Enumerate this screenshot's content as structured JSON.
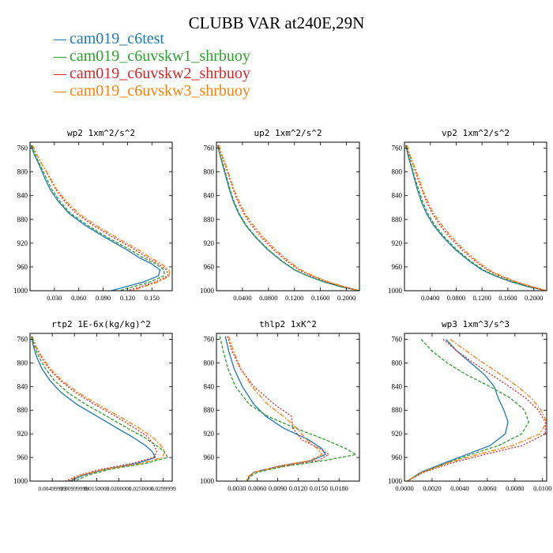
{
  "title": "CLUBB VAR at240E,29N",
  "legend": [
    {
      "label": "cam019_c6test",
      "color": "#1f77b4",
      "dash": ""
    },
    {
      "label": "cam019_c6uvskw1_shrbuoy",
      "color": "#2ca02c",
      "dash": "4,2"
    },
    {
      "label": "cam019_c6uvskw2_shrbuoy",
      "color": "#d62728",
      "dash": "2,2"
    },
    {
      "label": "cam019_c6uvskw3_shrbuoy",
      "color": "#ff7f0e",
      "dash": "6,2,2,2"
    }
  ],
  "chart_data": [
    {
      "type": "line",
      "title": "wp2  1xm^2/s^2",
      "ylim": [
        1000,
        750
      ],
      "yticks": [
        760,
        800,
        840,
        880,
        920,
        960,
        1000
      ],
      "xlim": [
        0.0,
        0.175
      ],
      "xticks": [
        0.03,
        0.06,
        0.09,
        0.12,
        0.15
      ],
      "xticklabels": [
        "0.030",
        "0.060",
        "0.090",
        "0.120",
        "0.150"
      ],
      "y": [
        755,
        770,
        790,
        810,
        830,
        850,
        870,
        890,
        910,
        930,
        945,
        955,
        965,
        975,
        985,
        1000
      ],
      "series": [
        {
          "name": "cam019_c6test",
          "values": [
            0.001,
            0.005,
            0.012,
            0.018,
            0.025,
            0.035,
            0.048,
            0.068,
            0.092,
            0.118,
            0.135,
            0.15,
            0.16,
            0.158,
            0.14,
            0.1
          ]
        },
        {
          "name": "cam019_c6uvskw1_shrbuoy",
          "values": [
            0.002,
            0.006,
            0.013,
            0.02,
            0.027,
            0.037,
            0.05,
            0.071,
            0.095,
            0.122,
            0.14,
            0.155,
            0.165,
            0.165,
            0.148,
            0.11
          ]
        },
        {
          "name": "cam019_c6uvskw2_shrbuoy",
          "values": [
            0.003,
            0.008,
            0.016,
            0.024,
            0.032,
            0.043,
            0.057,
            0.078,
            0.102,
            0.128,
            0.145,
            0.158,
            0.168,
            0.17,
            0.155,
            0.12
          ]
        },
        {
          "name": "cam019_c6uvskw3_shrbuoy",
          "values": [
            0.003,
            0.008,
            0.016,
            0.025,
            0.033,
            0.045,
            0.06,
            0.081,
            0.106,
            0.132,
            0.149,
            0.162,
            0.171,
            0.172,
            0.158,
            0.125
          ]
        }
      ]
    },
    {
      "type": "line",
      "title": "up2  1xm^2/s^2",
      "ylim": [
        1000,
        750
      ],
      "yticks": [
        760,
        800,
        840,
        880,
        920,
        960,
        1000
      ],
      "xlim": [
        0.0,
        0.22
      ],
      "xticks": [
        0.04,
        0.08,
        0.12,
        0.16,
        0.2
      ],
      "xticklabels": [
        "0.0400",
        "0.0800",
        "0.1200",
        "0.1600",
        "0.2000"
      ],
      "y": [
        755,
        770,
        790,
        810,
        830,
        850,
        870,
        890,
        910,
        930,
        950,
        965,
        975,
        985,
        993,
        1000
      ],
      "series": [
        {
          "name": "cam019_c6test",
          "values": [
            0.002,
            0.005,
            0.01,
            0.015,
            0.02,
            0.026,
            0.034,
            0.045,
            0.06,
            0.078,
            0.1,
            0.12,
            0.14,
            0.165,
            0.19,
            0.22
          ]
        },
        {
          "name": "cam019_c6uvskw1_shrbuoy",
          "values": [
            0.002,
            0.005,
            0.011,
            0.016,
            0.021,
            0.027,
            0.035,
            0.046,
            0.061,
            0.079,
            0.101,
            0.121,
            0.141,
            0.166,
            0.191,
            0.22
          ]
        },
        {
          "name": "cam019_c6uvskw2_shrbuoy",
          "values": [
            0.003,
            0.007,
            0.014,
            0.02,
            0.026,
            0.033,
            0.042,
            0.054,
            0.069,
            0.087,
            0.108,
            0.127,
            0.146,
            0.17,
            0.194,
            0.22
          ]
        },
        {
          "name": "cam019_c6uvskw3_shrbuoy",
          "values": [
            0.004,
            0.008,
            0.015,
            0.021,
            0.027,
            0.035,
            0.044,
            0.057,
            0.072,
            0.09,
            0.111,
            0.13,
            0.149,
            0.172,
            0.196,
            0.22
          ]
        }
      ]
    },
    {
      "type": "line",
      "title": "vp2  1xm^2/s^2",
      "ylim": [
        1000,
        750
      ],
      "yticks": [
        760,
        800,
        840,
        880,
        920,
        960,
        1000
      ],
      "xlim": [
        0.0,
        0.22
      ],
      "xticks": [
        0.04,
        0.08,
        0.12,
        0.16,
        0.2
      ],
      "xticklabels": [
        "0.0400",
        "0.0800",
        "0.1200",
        "0.1600",
        "0.2000"
      ],
      "y": [
        755,
        770,
        790,
        810,
        830,
        850,
        870,
        890,
        910,
        930,
        950,
        965,
        975,
        985,
        993,
        1000
      ],
      "series": [
        {
          "name": "cam019_c6test",
          "values": [
            0.002,
            0.005,
            0.01,
            0.015,
            0.02,
            0.026,
            0.034,
            0.045,
            0.06,
            0.078,
            0.1,
            0.12,
            0.14,
            0.165,
            0.19,
            0.22
          ]
        },
        {
          "name": "cam019_c6uvskw1_shrbuoy",
          "values": [
            0.002,
            0.006,
            0.011,
            0.016,
            0.022,
            0.028,
            0.036,
            0.047,
            0.062,
            0.08,
            0.102,
            0.122,
            0.142,
            0.167,
            0.192,
            0.22
          ]
        },
        {
          "name": "cam019_c6uvskw2_shrbuoy",
          "values": [
            0.003,
            0.007,
            0.014,
            0.02,
            0.027,
            0.034,
            0.043,
            0.055,
            0.07,
            0.088,
            0.109,
            0.128,
            0.147,
            0.171,
            0.195,
            0.22
          ]
        },
        {
          "name": "cam019_c6uvskw3_shrbuoy",
          "values": [
            0.004,
            0.008,
            0.015,
            0.022,
            0.028,
            0.036,
            0.045,
            0.058,
            0.073,
            0.091,
            0.112,
            0.131,
            0.15,
            0.173,
            0.197,
            0.22
          ]
        }
      ]
    },
    {
      "type": "line",
      "title": "rtp2  1E-6x(kg/kg)^2",
      "ylim": [
        1000,
        750
      ],
      "yticks": [
        760,
        800,
        840,
        880,
        920,
        960,
        1000
      ],
      "xlim": [
        0.0,
        0.032
      ],
      "xticks": [
        0.005,
        0.01,
        0.015,
        0.02,
        0.025,
        0.03
      ],
      "xticklabels": [
        "0.00499999",
        "0.00999999",
        "0.0150000",
        "0.0200000",
        "0.0250000",
        "0.0299999"
      ],
      "y": [
        755,
        770,
        790,
        810,
        830,
        850,
        870,
        890,
        910,
        925,
        940,
        950,
        960,
        970,
        980,
        990,
        1000
      ],
      "series": [
        {
          "name": "cam019_c6test",
          "values": [
            0.0003,
            0.0007,
            0.0015,
            0.0027,
            0.0045,
            0.007,
            0.0105,
            0.015,
            0.0195,
            0.023,
            0.026,
            0.0275,
            0.0282,
            0.024,
            0.017,
            0.012,
            0.009
          ]
        },
        {
          "name": "cam019_c6uvskw1_shrbuoy",
          "values": [
            0.0004,
            0.0009,
            0.002,
            0.0035,
            0.0055,
            0.0085,
            0.0125,
            0.0172,
            0.0218,
            0.0255,
            0.0285,
            0.0302,
            0.031,
            0.026,
            0.018,
            0.013,
            0.01
          ]
        },
        {
          "name": "cam019_c6uvskw2_shrbuoy",
          "values": [
            0.0005,
            0.0011,
            0.0025,
            0.0043,
            0.0068,
            0.0102,
            0.0145,
            0.0192,
            0.0235,
            0.0265,
            0.028,
            0.0285,
            0.0278,
            0.023,
            0.016,
            0.011,
            0.008
          ]
        },
        {
          "name": "cam019_c6uvskw3_shrbuoy",
          "values": [
            0.0005,
            0.0012,
            0.0027,
            0.0046,
            0.0072,
            0.0108,
            0.0152,
            0.02,
            0.0245,
            0.0275,
            0.0295,
            0.0303,
            0.0298,
            0.025,
            0.017,
            0.0115,
            0.0085
          ]
        }
      ]
    },
    {
      "type": "line",
      "title": "thlp2  1xK^2",
      "ylim": [
        1000,
        750
      ],
      "yticks": [
        760,
        800,
        840,
        880,
        920,
        960,
        1000
      ],
      "xlim": [
        0.0,
        0.021
      ],
      "xticks": [
        0.003,
        0.006,
        0.009,
        0.012,
        0.015,
        0.018
      ],
      "xticklabels": [
        "0.0030",
        "0.0060",
        "0.0090",
        "0.0120",
        "0.0150",
        "0.0180"
      ],
      "y": [
        755,
        780,
        810,
        840,
        870,
        890,
        910,
        930,
        945,
        955,
        965,
        975,
        985,
        992,
        1000
      ],
      "series": [
        {
          "name": "cam019_c6test",
          "values": [
            0.0013,
            0.0018,
            0.0026,
            0.0038,
            0.0055,
            0.0072,
            0.0098,
            0.0135,
            0.0155,
            0.016,
            0.014,
            0.009,
            0.0055,
            0.0048,
            0.0045
          ]
        },
        {
          "name": "cam019_c6uvskw1_shrbuoy",
          "values": [
            0.0005,
            0.001,
            0.0017,
            0.0028,
            0.0048,
            0.0075,
            0.0115,
            0.016,
            0.019,
            0.0205,
            0.016,
            0.01,
            0.006,
            0.005,
            0.0045
          ]
        },
        {
          "name": "cam019_c6uvskw2_shrbuoy",
          "values": [
            0.0016,
            0.0023,
            0.0035,
            0.0055,
            0.0085,
            0.011,
            0.0112,
            0.0125,
            0.0152,
            0.0165,
            0.015,
            0.0095,
            0.0055,
            0.0048,
            0.0045
          ]
        },
        {
          "name": "cam019_c6uvskw3_shrbuoy",
          "values": [
            0.0018,
            0.0025,
            0.0036,
            0.0052,
            0.0075,
            0.0098,
            0.0118,
            0.0132,
            0.0148,
            0.0155,
            0.0138,
            0.009,
            0.0055,
            0.0047,
            0.0044
          ]
        }
      ]
    },
    {
      "type": "line",
      "title": "wp3  1xm^3/s^3",
      "ylim": [
        1000,
        750
      ],
      "yticks": [
        760,
        800,
        840,
        880,
        920,
        960,
        1000
      ],
      "xlim": [
        0.0,
        0.0103
      ],
      "xticks": [
        0.0,
        0.002,
        0.004,
        0.006,
        0.008,
        0.01
      ],
      "xticklabels": [
        "0.0000",
        "0.0020",
        "0.0040",
        "0.0060",
        "0.0080",
        "0.0100"
      ],
      "y": [
        760,
        780,
        800,
        820,
        840,
        860,
        880,
        900,
        920,
        940,
        955,
        970,
        985,
        1000
      ],
      "series": [
        {
          "name": "cam019_c6test",
          "values": [
            0.003,
            0.0038,
            0.0048,
            0.0058,
            0.0065,
            0.0068,
            0.0072,
            0.0075,
            0.0073,
            0.0062,
            0.0045,
            0.0028,
            0.0012,
            0.0002
          ]
        },
        {
          "name": "cam019_c6uvskw1_shrbuoy",
          "values": [
            0.0012,
            0.002,
            0.0031,
            0.0045,
            0.0062,
            0.0077,
            0.0087,
            0.009,
            0.0085,
            0.0068,
            0.0048,
            0.003,
            0.0013,
            0.0002
          ]
        },
        {
          "name": "cam019_c6uvskw2_shrbuoy",
          "values": [
            0.0028,
            0.0038,
            0.005,
            0.0063,
            0.0076,
            0.0088,
            0.0097,
            0.0102,
            0.0102,
            0.0085,
            0.0058,
            0.0033,
            0.0014,
            0.0002
          ]
        },
        {
          "name": "cam019_c6uvskw3_shrbuoy",
          "values": [
            0.0033,
            0.0045,
            0.0057,
            0.007,
            0.0082,
            0.0092,
            0.0099,
            0.0103,
            0.0098,
            0.0078,
            0.0053,
            0.003,
            0.0013,
            0.0002
          ]
        }
      ]
    }
  ]
}
